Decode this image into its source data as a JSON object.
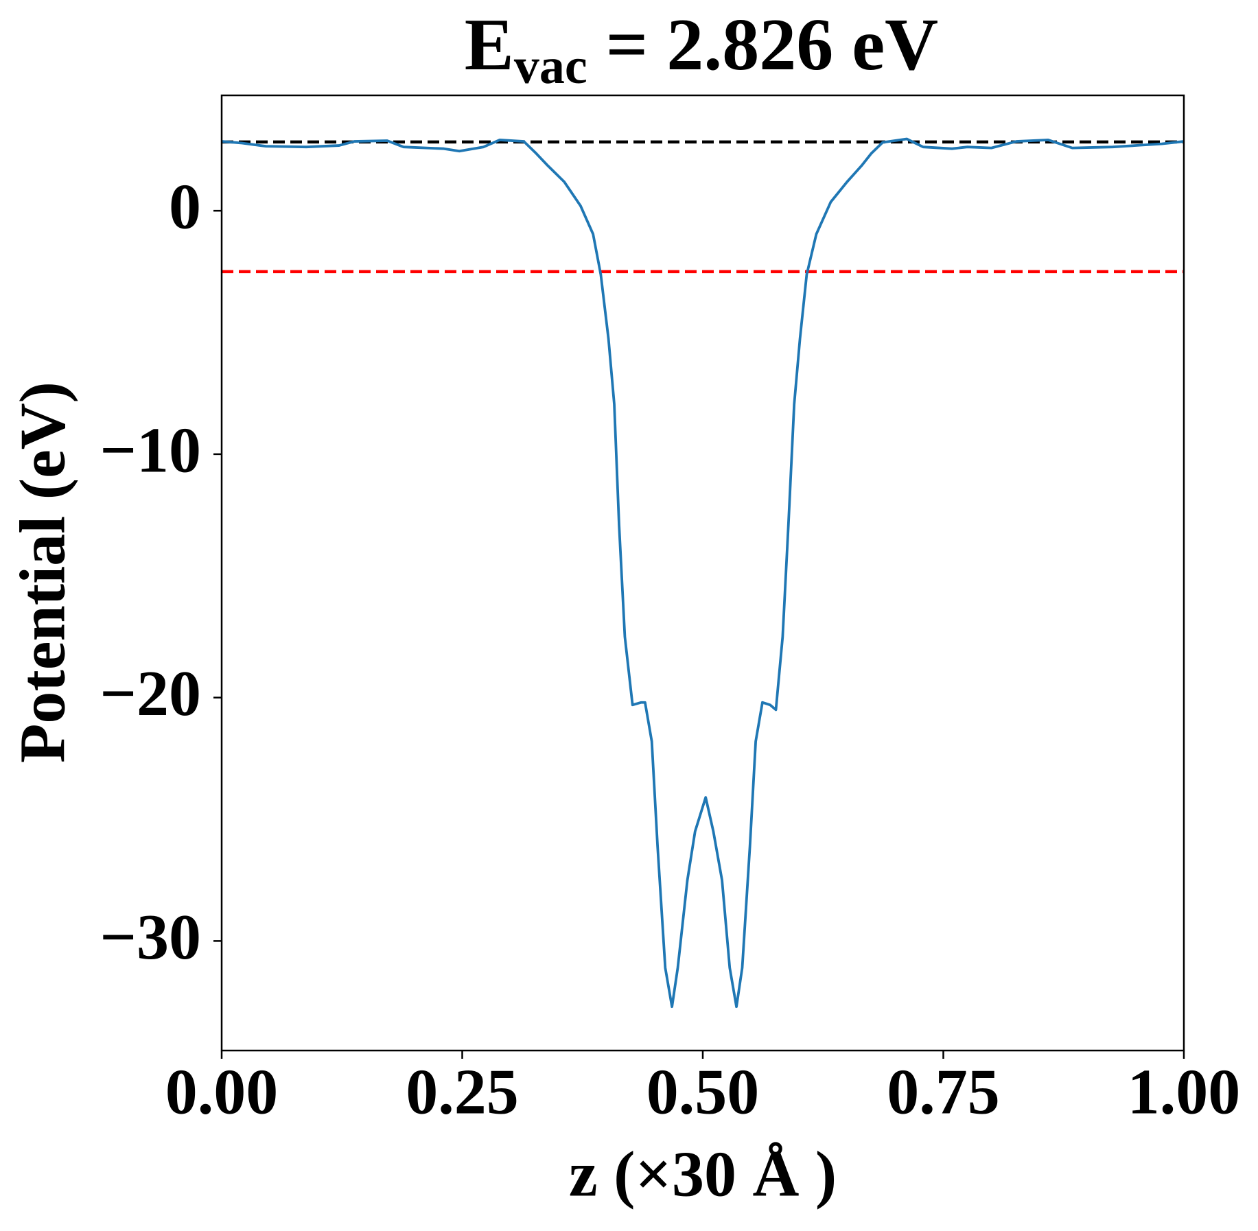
{
  "chart_data": {
    "type": "line",
    "title": {
      "main": "E",
      "subscript": "vac",
      "rest": " = 2.826 eV"
    },
    "xlabel": "z (×30 Å )",
    "ylabel": "Potential (eV)",
    "xlim": [
      0,
      1
    ],
    "ylim": [
      -34.5,
      4.74
    ],
    "xticks": [
      {
        "value": 0,
        "label": "0.00"
      },
      {
        "value": 0.25,
        "label": "0.25"
      },
      {
        "value": 0.5,
        "label": "0.50"
      },
      {
        "value": 0.75,
        "label": "0.75"
      },
      {
        "value": 1,
        "label": "1.00"
      }
    ],
    "yticks": [
      0,
      {
        "value": -10,
        "label": "−10"
      },
      {
        "value": -20,
        "label": "−20"
      },
      {
        "value": -30,
        "label": "−30"
      }
    ],
    "hlines": [
      {
        "value": 2.826,
        "color": "#000000"
      },
      {
        "value": -2.5,
        "color": "#ff0000"
      }
    ],
    "x": [
      0,
      0.021,
      0.046,
      0.088,
      0.122,
      0.138,
      0.172,
      0.189,
      0.231,
      0.247,
      0.272,
      0.289,
      0.314,
      0.327,
      0.339,
      0.356,
      0.373,
      0.386,
      0.394,
      0.402,
      0.408,
      0.413,
      0.419,
      0.427,
      0.436,
      0.44,
      0.447,
      0.453,
      0.461,
      0.468,
      0.474,
      0.484,
      0.492,
      0.503,
      0.511,
      0.52,
      0.528,
      0.535,
      0.541,
      0.549,
      0.555,
      0.562,
      0.57,
      0.576,
      0.583,
      0.589,
      0.595,
      0.601,
      0.608,
      0.618,
      0.633,
      0.65,
      0.665,
      0.675,
      0.687,
      0.712,
      0.729,
      0.759,
      0.775,
      0.8,
      0.826,
      0.859,
      0.884,
      0.926,
      0.977,
      1
    ],
    "series": [
      {
        "color": "#1f77b4",
        "values": [
          2.85,
          2.78,
          2.65,
          2.62,
          2.68,
          2.85,
          2.88,
          2.62,
          2.55,
          2.45,
          2.62,
          2.91,
          2.85,
          2.35,
          1.85,
          1.19,
          0.2,
          -0.96,
          -2.62,
          -5.26,
          -7.95,
          -12.9,
          -17.5,
          -20.3,
          -20.2,
          -20.2,
          -21.8,
          -26.1,
          -31.1,
          -32.7,
          -31.1,
          -27.5,
          -25.5,
          -24.1,
          -25.5,
          -27.5,
          -31.1,
          -32.7,
          -31.1,
          -26.1,
          -21.8,
          -20.2,
          -20.3,
          -20.5,
          -17.5,
          -12.9,
          -7.95,
          -5.26,
          -2.62,
          -0.96,
          0.36,
          1.19,
          1.85,
          2.35,
          2.81,
          2.95,
          2.62,
          2.55,
          2.62,
          2.58,
          2.85,
          2.91,
          2.58,
          2.62,
          2.75,
          2.85
        ]
      }
    ]
  }
}
